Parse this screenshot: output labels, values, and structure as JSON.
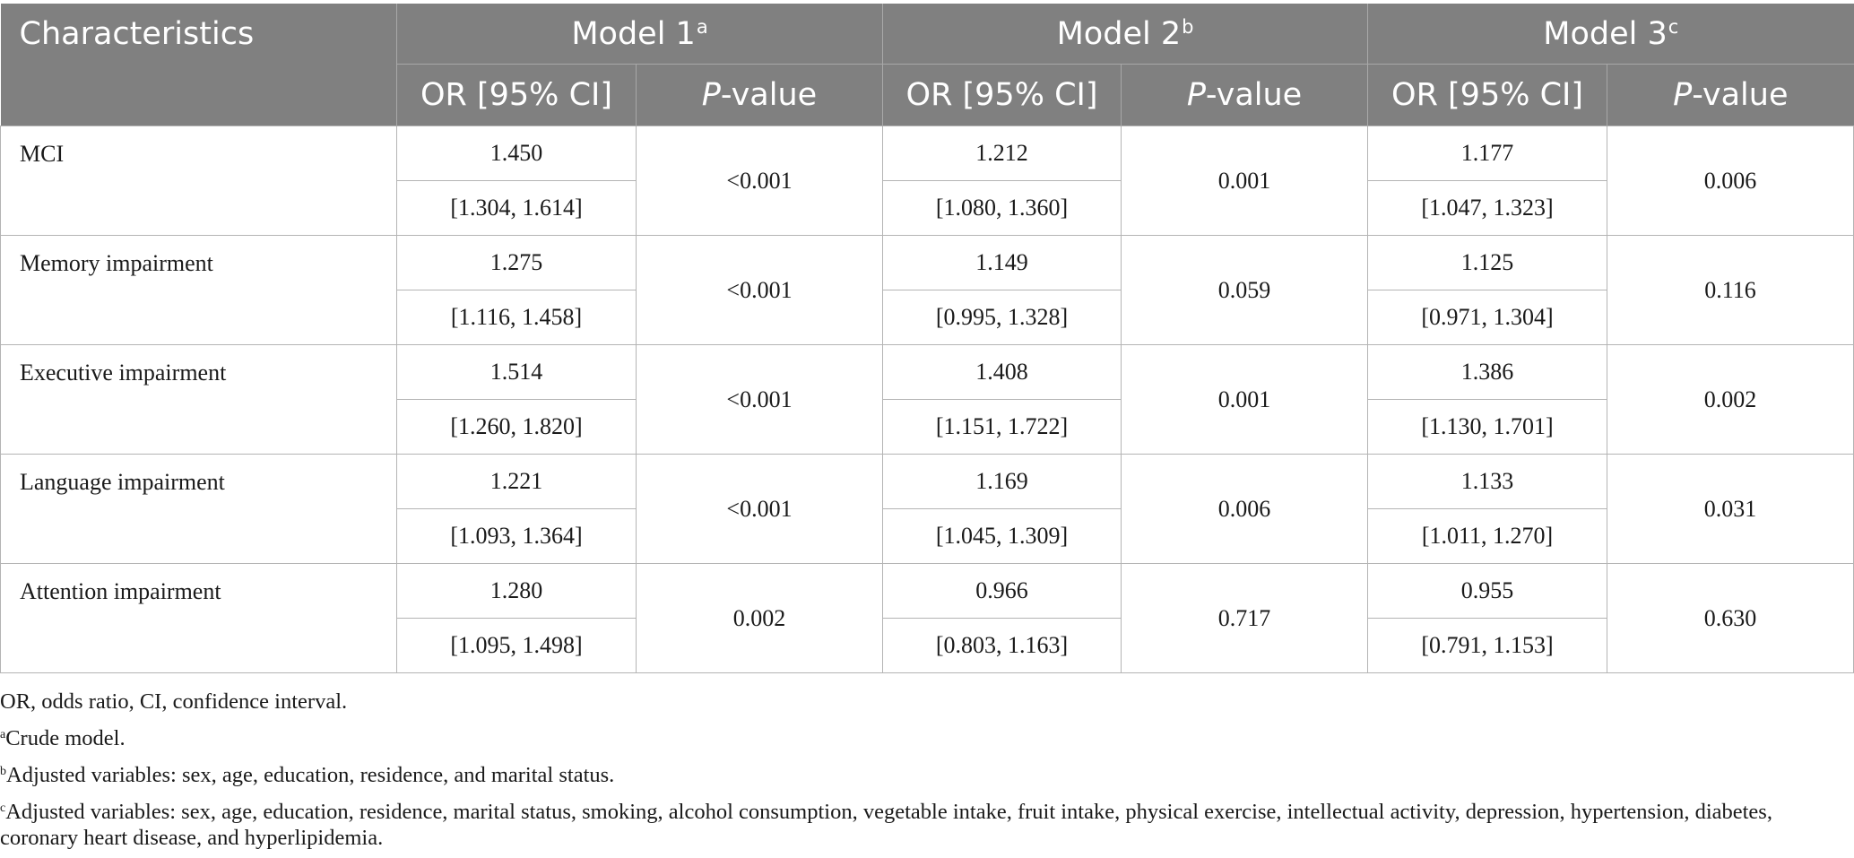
{
  "header": {
    "characteristics": "Characteristics",
    "models": [
      {
        "label": "Model 1",
        "sup": "a"
      },
      {
        "label": "Model 2",
        "sup": "b"
      },
      {
        "label": "Model 3",
        "sup": "c"
      }
    ],
    "or_ci": "OR [95% CI]",
    "p_italic": "P",
    "p_rest": "-value"
  },
  "rows": [
    {
      "name": "MCI",
      "m1": {
        "or": "1.450",
        "ci": "[1.304, 1.614]",
        "p": "<0.001"
      },
      "m2": {
        "or": "1.212",
        "ci": "[1.080, 1.360]",
        "p": "0.001"
      },
      "m3": {
        "or": "1.177",
        "ci": "[1.047, 1.323]",
        "p": "0.006"
      }
    },
    {
      "name": "Memory impairment",
      "m1": {
        "or": "1.275",
        "ci": "[1.116, 1.458]",
        "p": "<0.001"
      },
      "m2": {
        "or": "1.149",
        "ci": "[0.995, 1.328]",
        "p": "0.059"
      },
      "m3": {
        "or": "1.125",
        "ci": "[0.971, 1.304]",
        "p": "0.116"
      }
    },
    {
      "name": "Executive impairment",
      "m1": {
        "or": "1.514",
        "ci": "[1.260, 1.820]",
        "p": "<0.001"
      },
      "m2": {
        "or": "1.408",
        "ci": "[1.151, 1.722]",
        "p": "0.001"
      },
      "m3": {
        "or": "1.386",
        "ci": "[1.130, 1.701]",
        "p": "0.002"
      }
    },
    {
      "name": "Language impairment",
      "m1": {
        "or": "1.221",
        "ci": "[1.093, 1.364]",
        "p": "<0.001"
      },
      "m2": {
        "or": "1.169",
        "ci": "[1.045, 1.309]",
        "p": "0.006"
      },
      "m3": {
        "or": "1.133",
        "ci": "[1.011, 1.270]",
        "p": "0.031"
      }
    },
    {
      "name": "Attention impairment",
      "m1": {
        "or": "1.280",
        "ci": "[1.095, 1.498]",
        "p": "0.002"
      },
      "m2": {
        "or": "0.966",
        "ci": "[0.803, 1.163]",
        "p": "0.717"
      },
      "m3": {
        "or": "0.955",
        "ci": "[0.791, 1.153]",
        "p": "0.630"
      }
    }
  ],
  "notes": {
    "abbrev": "OR, odds ratio, CI, confidence interval.",
    "a": {
      "sup": "a",
      "text": "Crude model."
    },
    "b": {
      "sup": "b",
      "text": "Adjusted variables: sex, age, education, residence, and marital status."
    },
    "c": {
      "sup": "c",
      "text": "Adjusted variables: sex, age, education, residence, marital status, smoking, alcohol consumption, vegetable intake, fruit intake, physical exercise, intellectual activity, depression, hypertension, diabetes, coronary heart disease, and hyperlipidemia."
    }
  },
  "colors": {
    "header_bg": "#808080",
    "header_text": "#ffffff",
    "border": "#b4b4b4"
  }
}
